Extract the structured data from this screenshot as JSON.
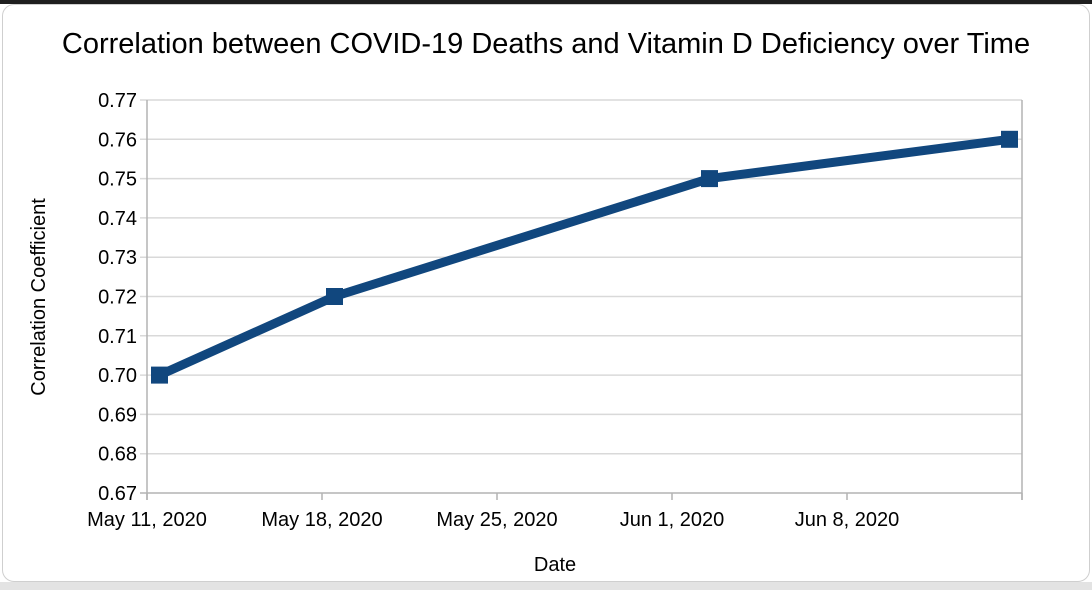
{
  "window": {
    "top_bar_color": "#1e1e1e",
    "card_border_color": "#cfcfcf",
    "card_background": "#ffffff",
    "bottom_bar_color": "#e3e3e3"
  },
  "chart_data": {
    "type": "line",
    "title": "Correlation between COVID-19 Deaths and Vitamin D Deficiency over Time",
    "xlabel": "Date",
    "ylabel": "Correlation Coefficient",
    "series": [
      {
        "color": "#11477e",
        "marker": "square",
        "points": [
          {
            "date": "May 11, 2020",
            "day": 0,
            "value": 0.7
          },
          {
            "date": "May 18, 2020",
            "day": 7,
            "value": 0.72
          },
          {
            "date": "Jun 2, 2020",
            "day": 22,
            "value": 0.75
          },
          {
            "date": "Jun 14, 2020",
            "day": 34,
            "value": 0.76
          }
        ]
      }
    ],
    "x_axis": {
      "ticks": [
        {
          "label": "May 11, 2020",
          "day": 0
        },
        {
          "label": "May 18, 2020",
          "day": 7
        },
        {
          "label": "May 25, 2020",
          "day": 14
        },
        {
          "label": "Jun 1, 2020",
          "day": 21
        },
        {
          "label": "Jun 8, 2020",
          "day": 28
        }
      ],
      "range_days": [
        0,
        35
      ]
    },
    "y_axis": {
      "min": 0.67,
      "max": 0.77,
      "step": 0.01,
      "decimals": 2
    },
    "style": {
      "gridline_color": "#d9d9d9",
      "axis_color": "#b3b3b3",
      "text_color": "#000000"
    }
  }
}
